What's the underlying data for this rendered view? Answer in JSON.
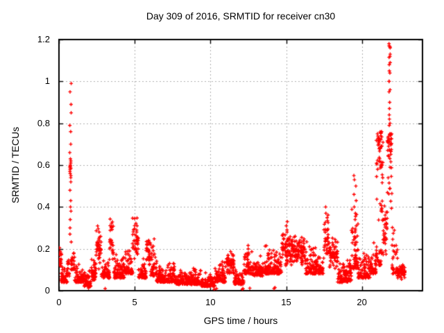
{
  "colors": {
    "marker": "#ff0000",
    "grid": "#b0b0b0",
    "border": "#000000",
    "background": "#ffffff",
    "text": "#000000"
  },
  "chart_data": {
    "type": "scatter",
    "title": "Day 309 of 2016, SRMTID for receiver cn30",
    "xlabel": "GPS time / hours",
    "ylabel": "SRMTID / TECUs",
    "xlim": [
      0,
      24
    ],
    "ylim": [
      0,
      1.2
    ],
    "grid": true,
    "legend": "none",
    "marker": {
      "shape": "plus",
      "color": "#ff0000",
      "size": 5
    },
    "xticks": [
      {
        "v": 0,
        "label": "0"
      },
      {
        "v": 5,
        "label": "5"
      },
      {
        "v": 10,
        "label": "10"
      },
      {
        "v": 15,
        "label": "15"
      },
      {
        "v": 20,
        "label": "20"
      }
    ],
    "yticks": [
      {
        "v": 0,
        "label": "0"
      },
      {
        "v": 0.2,
        "label": "0.2"
      },
      {
        "v": 0.4,
        "label": "0.4"
      },
      {
        "v": 0.6,
        "label": "0.6"
      },
      {
        "v": 0.8,
        "label": "0.8"
      },
      {
        "v": 1,
        "label": "1"
      },
      {
        "v": 1.2,
        "label": "1.2"
      }
    ],
    "band_segments": [
      [
        0.0,
        0.18,
        0.08,
        0.22,
        22,
        "mid"
      ],
      [
        0.15,
        0.55,
        0.04,
        0.13,
        45,
        "low"
      ],
      [
        0.55,
        0.7,
        0.07,
        0.24,
        16,
        "low"
      ],
      [
        0.8,
        1.05,
        0.1,
        0.28,
        26,
        "low"
      ],
      [
        1.05,
        1.65,
        0.04,
        0.13,
        70,
        "low"
      ],
      [
        1.65,
        2.1,
        0.02,
        0.1,
        55,
        "low"
      ],
      [
        2.1,
        2.45,
        0.05,
        0.17,
        42,
        "low"
      ],
      [
        2.45,
        2.8,
        0.1,
        0.33,
        40,
        "mid"
      ],
      [
        2.8,
        3.35,
        0.06,
        0.17,
        62,
        "low"
      ],
      [
        3.35,
        3.6,
        0.12,
        0.4,
        26,
        "mid"
      ],
      [
        3.6,
        4.3,
        0.06,
        0.2,
        80,
        "low"
      ],
      [
        4.3,
        4.85,
        0.08,
        0.22,
        62,
        "low"
      ],
      [
        4.85,
        5.25,
        0.15,
        0.37,
        42,
        "mid"
      ],
      [
        5.25,
        5.75,
        0.06,
        0.18,
        55,
        "low"
      ],
      [
        5.75,
        6.05,
        0.1,
        0.26,
        32,
        "mid"
      ],
      [
        6.05,
        6.45,
        0.07,
        0.28,
        40,
        "low"
      ],
      [
        6.45,
        7.2,
        0.04,
        0.13,
        85,
        "low"
      ],
      [
        7.2,
        7.7,
        0.04,
        0.15,
        55,
        "low"
      ],
      [
        7.7,
        8.6,
        0.03,
        0.1,
        100,
        "low"
      ],
      [
        8.6,
        9.4,
        0.03,
        0.12,
        90,
        "low"
      ],
      [
        9.4,
        10.3,
        0.02,
        0.09,
        100,
        "low"
      ],
      [
        10.3,
        11.0,
        0.04,
        0.15,
        75,
        "low"
      ],
      [
        11.0,
        11.55,
        0.07,
        0.19,
        58,
        "mid"
      ],
      [
        11.55,
        12.2,
        0.03,
        0.11,
        70,
        "low"
      ],
      [
        12.2,
        12.75,
        0.08,
        0.25,
        58,
        "low"
      ],
      [
        12.75,
        13.5,
        0.07,
        0.18,
        80,
        "low"
      ],
      [
        13.5,
        14.2,
        0.08,
        0.22,
        75,
        "low"
      ],
      [
        14.2,
        14.7,
        0.08,
        0.2,
        55,
        "low"
      ],
      [
        14.7,
        15.4,
        0.1,
        0.3,
        75,
        "mid"
      ],
      [
        15.4,
        16.25,
        0.1,
        0.27,
        95,
        "mid"
      ],
      [
        16.25,
        17.1,
        0.08,
        0.24,
        90,
        "low"
      ],
      [
        17.1,
        17.45,
        0.08,
        0.2,
        36,
        "low"
      ],
      [
        17.45,
        17.8,
        0.12,
        0.38,
        35,
        "mid"
      ],
      [
        17.8,
        18.4,
        0.09,
        0.26,
        62,
        "mid"
      ],
      [
        18.4,
        19.3,
        0.04,
        0.15,
        95,
        "low"
      ],
      [
        19.3,
        19.75,
        0.1,
        0.5,
        45,
        "low"
      ],
      [
        19.75,
        20.6,
        0.06,
        0.2,
        90,
        "low"
      ],
      [
        20.6,
        20.95,
        0.08,
        0.26,
        38,
        "low"
      ],
      [
        20.95,
        21.4,
        0.28,
        0.76,
        60,
        "high"
      ],
      [
        20.95,
        21.4,
        0.12,
        0.3,
        25,
        "low"
      ],
      [
        21.4,
        21.68,
        0.15,
        0.42,
        32,
        "mid"
      ],
      [
        21.68,
        21.98,
        0.3,
        0.75,
        45,
        "high"
      ],
      [
        21.98,
        22.35,
        0.08,
        0.32,
        35,
        "low"
      ],
      [
        22.35,
        22.85,
        0.05,
        0.13,
        60,
        "mid"
      ]
    ],
    "spike_columns": [
      {
        "x": 0.76,
        "jitter": 0.05,
        "ys": [
          0.99,
          0.95,
          0.89,
          0.85,
          0.79,
          0.76,
          0.7,
          0.66,
          0.63,
          0.62,
          0.61,
          0.6,
          0.595,
          0.59,
          0.585,
          0.58,
          0.57,
          0.56,
          0.55,
          0.54,
          0.52,
          0.48,
          0.43,
          0.4,
          0.38,
          0.34,
          0.3,
          0.27
        ]
      },
      {
        "x": 15.05,
        "jitter": 0.06,
        "ys": [
          0.33,
          0.31,
          0.29
        ]
      },
      {
        "x": 17.6,
        "jitter": 0.05,
        "ys": [
          0.4,
          0.37
        ]
      },
      {
        "x": 19.55,
        "jitter": 0.08,
        "ys": [
          0.55,
          0.53,
          0.5,
          0.46,
          0.43,
          0.4,
          0.37,
          0.34,
          0.31,
          0.28,
          0.25,
          0.22,
          0.19,
          0.16,
          0.13
        ]
      },
      {
        "x": 21.82,
        "jitter": 0.05,
        "ys": [
          1.18,
          1.17,
          1.165,
          1.16,
          1.13,
          1.12,
          1.115,
          1.09,
          1.08,
          1.05,
          1.04,
          1.0,
          1.0,
          0.96,
          0.95,
          0.9,
          0.87,
          0.84,
          0.82,
          0.8,
          0.79
        ]
      }
    ],
    "isolated_points": [
      [
        10.25,
        0.006
      ],
      [
        10.4,
        0.01
      ],
      [
        12.1,
        0.006
      ],
      [
        12.15,
        0.01
      ],
      [
        12.6,
        0.012
      ],
      [
        14.2,
        0.01
      ],
      [
        14.26,
        0.015
      ],
      [
        3.05,
        0.01
      ],
      [
        1.95,
        0.012
      ]
    ]
  }
}
